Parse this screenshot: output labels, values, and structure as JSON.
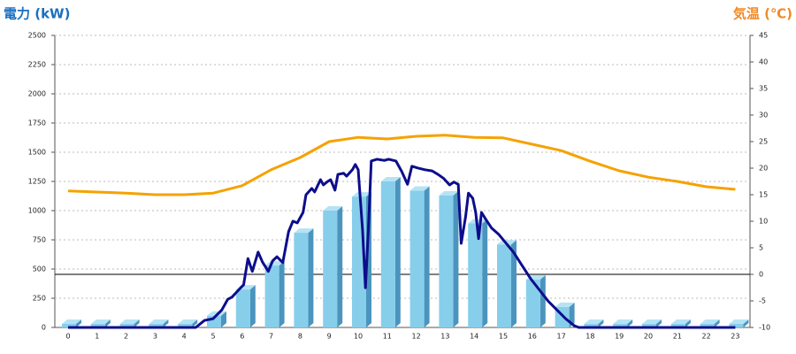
{
  "chart_data": {
    "type": "bar-line-combo",
    "y_label": "電力 (kW)",
    "y2_label": "気温 (℃)",
    "y_label_color": "#1a6fc0",
    "y2_label_color": "#f08a24",
    "categories": [
      "0",
      "1",
      "2",
      "3",
      "4",
      "5",
      "6",
      "7",
      "8",
      "9",
      "10",
      "11",
      "12",
      "13",
      "14",
      "15",
      "16",
      "17",
      "18",
      "19",
      "20",
      "21",
      "22",
      "23"
    ],
    "bars": {
      "color": "#87ceeb",
      "side_color": "#4b94bd",
      "top_color": "#b5e3f5",
      "values": [
        0,
        0,
        0,
        0,
        0,
        100,
        325,
        530,
        810,
        1000,
        1120,
        1250,
        1170,
        1130,
        890,
        710,
        410,
        175,
        0,
        0,
        0,
        0,
        0,
        0
      ]
    },
    "power_line": {
      "color": "#0d0d8c",
      "x": [
        0,
        4.4,
        4.7,
        5.0,
        5.3,
        5.5,
        5.65,
        5.8,
        5.95,
        6.05,
        6.2,
        6.35,
        6.55,
        6.7,
        6.9,
        7.05,
        7.2,
        7.4,
        7.6,
        7.75,
        7.9,
        8.1,
        8.2,
        8.4,
        8.5,
        8.7,
        8.8,
        8.95,
        9.05,
        9.2,
        9.3,
        9.5,
        9.6,
        9.8,
        9.9,
        10.0,
        10.15,
        10.25,
        10.35,
        10.45,
        10.65,
        10.9,
        11.05,
        11.3,
        11.5,
        11.7,
        11.85,
        12.05,
        12.3,
        12.55,
        12.75,
        12.95,
        13.15,
        13.3,
        13.45,
        13.55,
        13.7,
        13.8,
        13.95,
        14.05,
        14.15,
        14.25,
        14.4,
        14.6,
        14.85,
        15.1,
        15.35,
        15.65,
        15.95,
        16.25,
        16.55,
        16.85,
        17.15,
        17.45,
        17.6,
        23
      ],
      "values": [
        0,
        0,
        60,
        75,
        150,
        240,
        260,
        300,
        340,
        365,
        590,
        480,
        645,
        560,
        480,
        570,
        605,
        555,
        820,
        910,
        895,
        985,
        1135,
        1190,
        1160,
        1265,
        1220,
        1250,
        1265,
        1175,
        1310,
        1320,
        1295,
        1350,
        1395,
        1350,
        835,
        340,
        835,
        1425,
        1440,
        1430,
        1440,
        1425,
        1335,
        1225,
        1380,
        1365,
        1350,
        1340,
        1310,
        1275,
        1220,
        1245,
        1225,
        720,
        945,
        1150,
        1105,
        985,
        760,
        985,
        925,
        850,
        795,
        720,
        645,
        530,
        415,
        320,
        225,
        150,
        75,
        15,
        0,
        0
      ]
    },
    "temperature_line": {
      "color": "#f5a200",
      "axis": "y2",
      "values": [
        15.7,
        15.5,
        15.3,
        15,
        15,
        15.3,
        16.7,
        19.7,
        22,
        25,
        25.8,
        25.5,
        26,
        26.2,
        25.8,
        25.7,
        24.5,
        23.3,
        21.3,
        19.5,
        18.3,
        17.5,
        16.5,
        16
      ]
    },
    "ylim": [
      0,
      2500
    ],
    "yticks": [
      0,
      250,
      500,
      750,
      1000,
      1250,
      1500,
      1750,
      2000,
      2250,
      2500
    ],
    "y2lim": [
      -10,
      45
    ],
    "y2ticks": [
      -10,
      -5,
      0,
      5,
      10,
      15,
      20,
      25,
      30,
      35,
      40,
      45
    ],
    "grid": true
  }
}
